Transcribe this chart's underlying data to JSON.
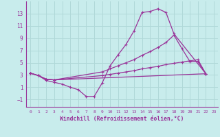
{
  "background_color": "#c8ecec",
  "grid_color": "#b0d8d8",
  "line_color": "#993399",
  "xlabel": "Windchill (Refroidissement éolien,°C)",
  "xlim": [
    -0.5,
    23.5
  ],
  "ylim": [
    -2.2,
    15.0
  ],
  "yticks": [
    -1,
    1,
    3,
    5,
    7,
    9,
    11,
    13
  ],
  "xticks": [
    0,
    1,
    2,
    3,
    4,
    5,
    6,
    7,
    8,
    9,
    10,
    11,
    12,
    13,
    14,
    15,
    16,
    17,
    18,
    19,
    20,
    21,
    22,
    23
  ],
  "line1_x": [
    0,
    1,
    2,
    3,
    4,
    5,
    6,
    7,
    8,
    9,
    10,
    11,
    12,
    13,
    14,
    15,
    16,
    17,
    18,
    22
  ],
  "line1_y": [
    3.3,
    2.9,
    2.1,
    1.8,
    1.5,
    1.0,
    0.6,
    -0.5,
    -0.5,
    1.7,
    4.5,
    6.3,
    8.0,
    10.2,
    13.2,
    13.35,
    13.8,
    13.2,
    9.7,
    3.2
  ],
  "line2_x": [
    0,
    1,
    2,
    3,
    9,
    10,
    11,
    12,
    13,
    14,
    15,
    16,
    17,
    18,
    19,
    20,
    21,
    22
  ],
  "line2_y": [
    3.3,
    2.9,
    2.3,
    2.2,
    3.5,
    4.0,
    4.5,
    5.0,
    5.5,
    6.2,
    6.8,
    7.5,
    8.3,
    9.5,
    7.3,
    5.2,
    5.2,
    3.2
  ],
  "line3_x": [
    0,
    1,
    2,
    3,
    22
  ],
  "line3_y": [
    3.3,
    2.9,
    2.3,
    2.2,
    3.2
  ],
  "line4_x": [
    0,
    1,
    2,
    3,
    9,
    10,
    11,
    12,
    13,
    14,
    15,
    16,
    17,
    18,
    19,
    20,
    21,
    22
  ],
  "line4_y": [
    3.3,
    2.9,
    2.3,
    2.2,
    2.9,
    3.1,
    3.3,
    3.5,
    3.7,
    4.0,
    4.2,
    4.4,
    4.7,
    4.9,
    5.1,
    5.3,
    5.5,
    3.2
  ]
}
